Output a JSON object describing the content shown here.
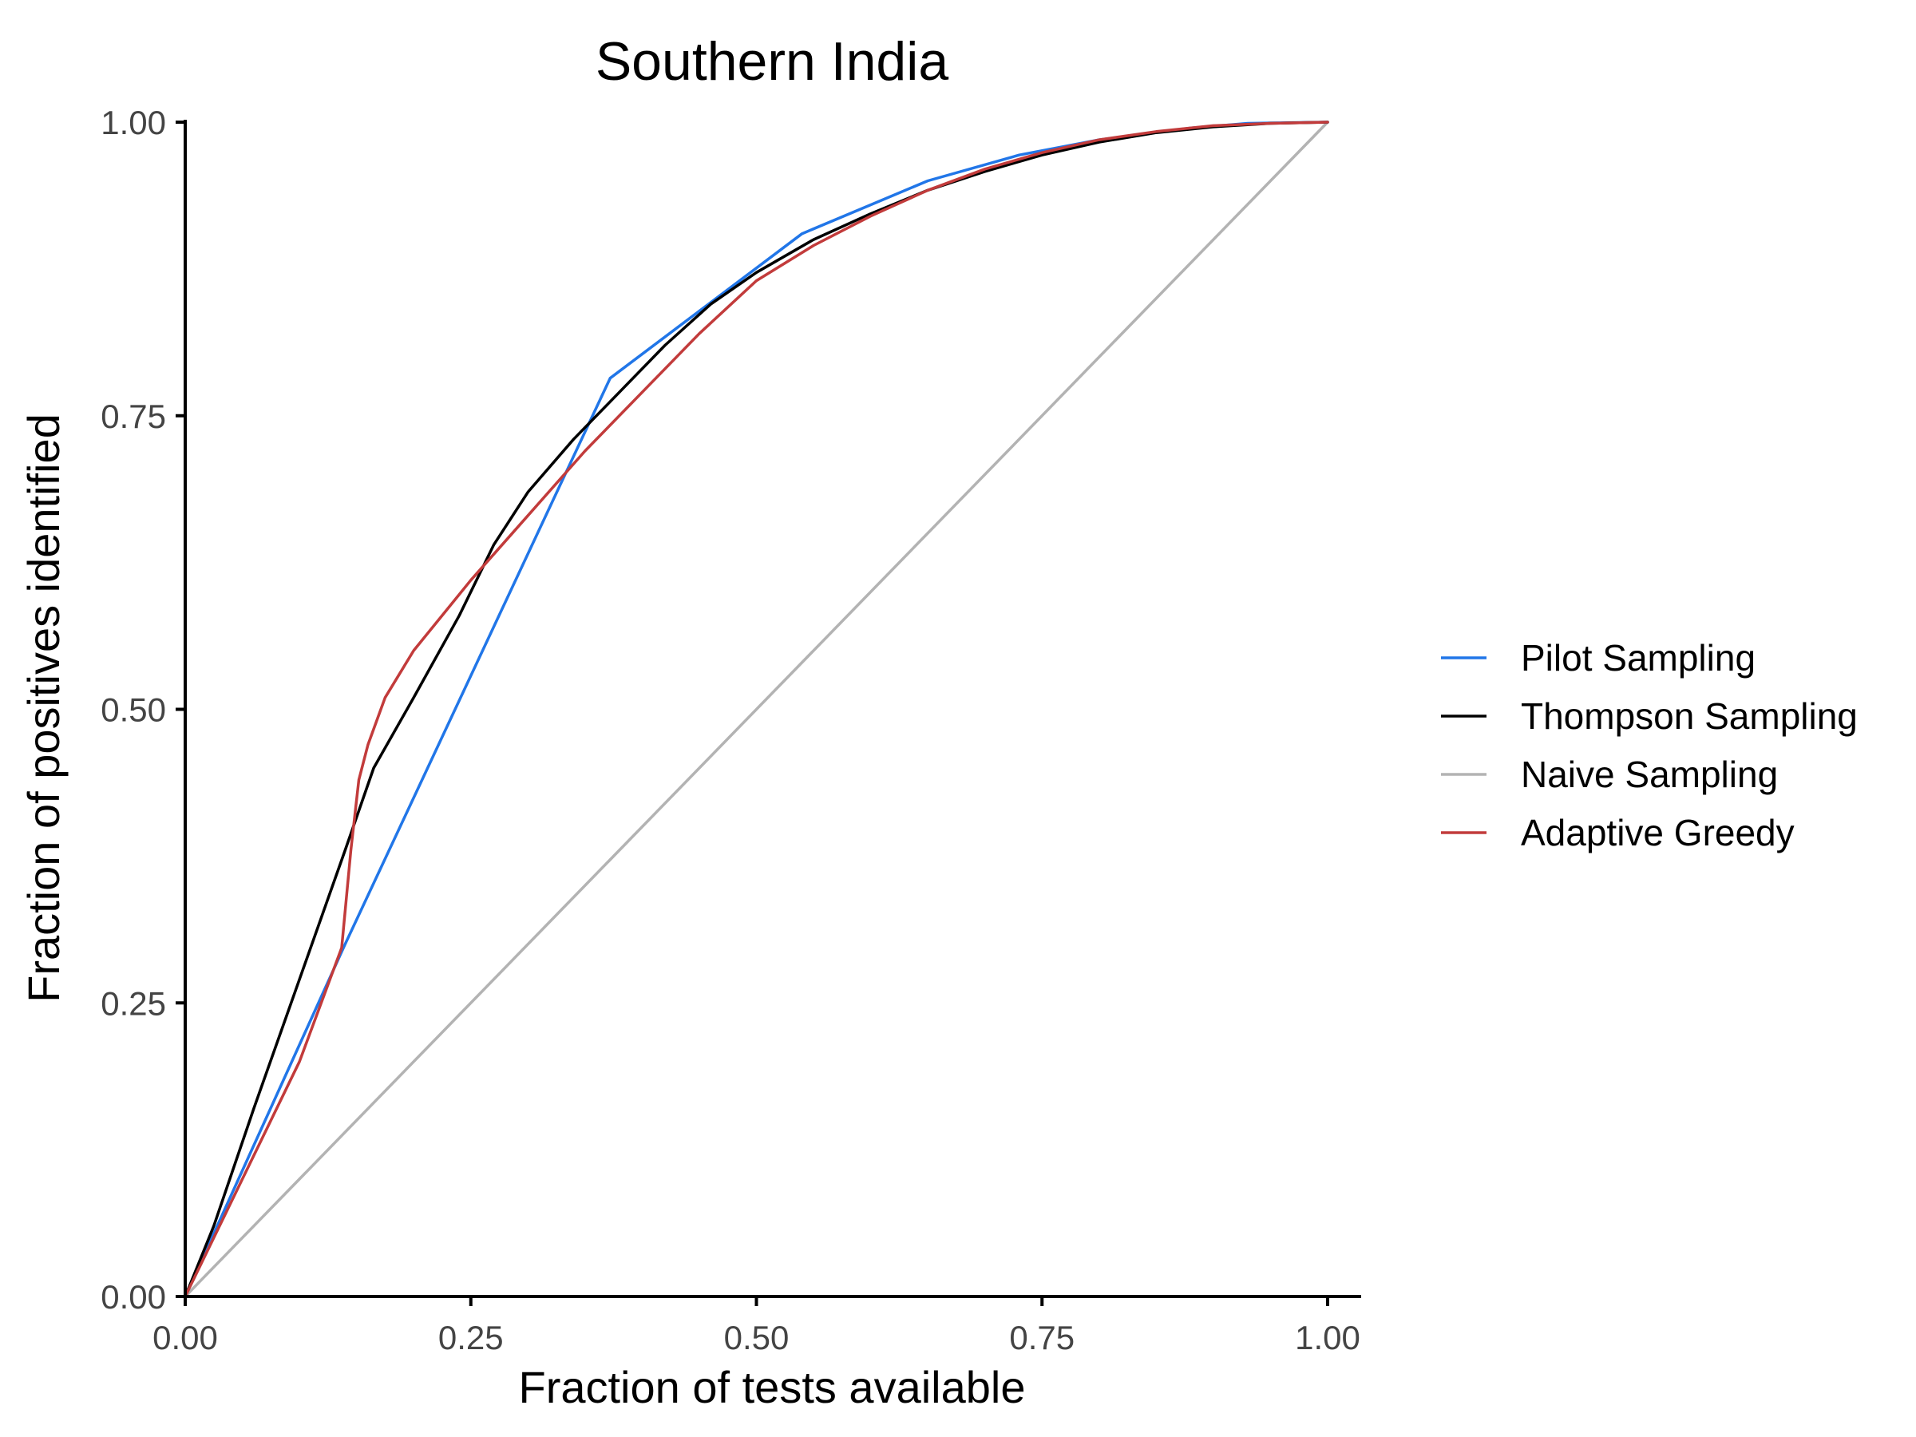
{
  "chart_data": {
    "type": "line",
    "title": "Southern India",
    "xlabel": "Fraction of tests available",
    "ylabel": "Fraction of positives identified",
    "xlim": [
      0,
      1
    ],
    "ylim": [
      0,
      1
    ],
    "x_ticks": [
      "0.00",
      "0.25",
      "0.50",
      "0.75",
      "1.00"
    ],
    "y_ticks": [
      "0.00",
      "0.25",
      "0.50",
      "0.75",
      "1.00"
    ],
    "grid": false,
    "legend_position": "right",
    "series": [
      {
        "name": "Pilot Sampling",
        "color": "#2176e8",
        "x": [
          0,
          0.14,
          0.372,
          0.54,
          0.65,
          0.73,
          0.8,
          0.88,
          0.93,
          1.0
        ],
        "y": [
          0,
          0.3,
          0.782,
          0.905,
          0.95,
          0.972,
          0.985,
          0.995,
          0.999,
          1.0
        ]
      },
      {
        "name": "Thompson Sampling",
        "color": "#000000",
        "x": [
          0,
          0.025,
          0.06,
          0.1,
          0.14,
          0.165,
          0.2,
          0.24,
          0.27,
          0.3,
          0.34,
          0.38,
          0.42,
          0.46,
          0.5,
          0.55,
          0.6,
          0.65,
          0.7,
          0.75,
          0.8,
          0.85,
          0.9,
          0.95,
          1.0
        ],
        "y": [
          0,
          0.06,
          0.16,
          0.27,
          0.38,
          0.45,
          0.51,
          0.58,
          0.64,
          0.685,
          0.73,
          0.77,
          0.81,
          0.845,
          0.872,
          0.9,
          0.922,
          0.942,
          0.958,
          0.972,
          0.983,
          0.991,
          0.996,
          0.999,
          1.0
        ]
      },
      {
        "name": "Naive Sampling",
        "color": "#b3b3b3",
        "x": [
          0,
          1.0
        ],
        "y": [
          0,
          1.0
        ]
      },
      {
        "name": "Adaptive Greedy",
        "color": "#c23b3b",
        "x": [
          0,
          0.05,
          0.1,
          0.137,
          0.145,
          0.152,
          0.16,
          0.175,
          0.2,
          0.25,
          0.3,
          0.35,
          0.4,
          0.45,
          0.5,
          0.55,
          0.6,
          0.65,
          0.7,
          0.75,
          0.8,
          0.85,
          0.9,
          0.95,
          1.0
        ],
        "y": [
          0,
          0.1,
          0.2,
          0.297,
          0.38,
          0.44,
          0.47,
          0.51,
          0.55,
          0.61,
          0.665,
          0.72,
          0.77,
          0.82,
          0.865,
          0.895,
          0.92,
          0.942,
          0.96,
          0.974,
          0.985,
          0.992,
          0.997,
          0.999,
          1.0
        ]
      }
    ]
  }
}
